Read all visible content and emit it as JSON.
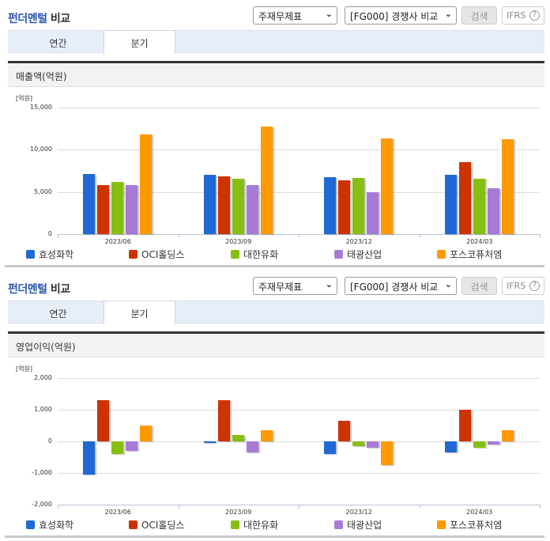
{
  "colors": {
    "hyosung": "#1f69d6",
    "oci": "#cc3300",
    "daehan": "#86bf11",
    "taekwang": "#a77ad6",
    "posco": "#ff9900",
    "title_blue": "#2a58a8"
  },
  "panels": [
    {
      "title_part1": "펀더멘털",
      "title_part2": " 비교",
      "select_statement": "주재무제표",
      "select_group": "[FG000] 경쟁사 비교",
      "search_label": "검색",
      "ifrs_label": "IFRS",
      "help_icon": "?",
      "tabs": [
        {
          "label": "연간",
          "active": false
        },
        {
          "label": "분기",
          "active": true
        }
      ],
      "metric_label": "매출액(억원)",
      "unit": "[억원]",
      "yticks": [
        "15,000",
        "10,000",
        "5,000",
        "0"
      ]
    },
    {
      "title_part1": "펀더멘털",
      "title_part2": " 비교",
      "select_statement": "주재무제표",
      "select_group": "[FG000] 경쟁사 비교",
      "search_label": "검색",
      "ifrs_label": "IFRS",
      "help_icon": "?",
      "tabs": [
        {
          "label": "연간",
          "active": false
        },
        {
          "label": "분기",
          "active": true
        }
      ],
      "metric_label": "영업이익(억원)",
      "unit": "[억원]",
      "yticks": [
        "2,000",
        "1,000",
        "0",
        "-1,000",
        "-2,000"
      ]
    }
  ],
  "legend": [
    "효성화학",
    "OCI홀딩스",
    "대한유화",
    "태광산업",
    "포스코퓨처엠"
  ],
  "chart_data": [
    {
      "type": "bar",
      "title": "매출액(억원)",
      "xlabel": "",
      "ylabel": "[억원]",
      "ylim": [
        0,
        15000
      ],
      "grid": true,
      "legend_position": "bottom",
      "categories": [
        "2023/06",
        "2023/09",
        "2023/12",
        "2024/03"
      ],
      "series": [
        {
          "name": "효성화학",
          "values": [
            7100,
            7000,
            6750,
            7050
          ]
        },
        {
          "name": "OCI홀딩스",
          "values": [
            5800,
            6850,
            6400,
            8550
          ]
        },
        {
          "name": "대한유화",
          "values": [
            6200,
            6550,
            6650,
            6600
          ]
        },
        {
          "name": "태광산업",
          "values": [
            5800,
            5800,
            5000,
            5450
          ]
        },
        {
          "name": "포스코퓨처엠",
          "values": [
            11800,
            12750,
            11350,
            11250
          ]
        }
      ]
    },
    {
      "type": "bar",
      "title": "영업이익(억원)",
      "xlabel": "",
      "ylabel": "[억원]",
      "ylim": [
        -2000,
        2000
      ],
      "grid": true,
      "legend_position": "bottom",
      "categories": [
        "2023/06",
        "2023/09",
        "2023/12",
        "2024/03"
      ],
      "series": [
        {
          "name": "효성화학",
          "values": [
            -1050,
            -50,
            -400,
            -350
          ]
        },
        {
          "name": "OCI홀딩스",
          "values": [
            1300,
            1300,
            650,
            1000
          ]
        },
        {
          "name": "대한유화",
          "values": [
            -400,
            200,
            -150,
            -200
          ]
        },
        {
          "name": "태광산업",
          "values": [
            -300,
            -350,
            -200,
            -100
          ]
        },
        {
          "name": "포스코퓨처엠",
          "values": [
            500,
            350,
            -750,
            350
          ]
        }
      ]
    }
  ]
}
